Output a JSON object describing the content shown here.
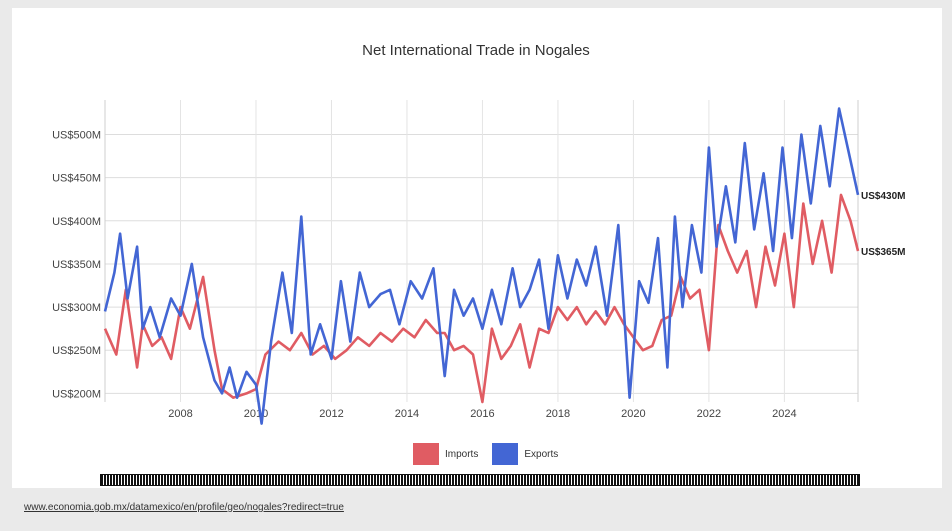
{
  "chart_data": {
    "type": "line",
    "title": "Net International Trade in Nogales",
    "xlabel": "",
    "ylabel": "",
    "x_ticks": [
      "2008",
      "2010",
      "2012",
      "2014",
      "2016",
      "2018",
      "2020",
      "2022",
      "2024"
    ],
    "y_ticks": [
      "US$200M",
      "US$250M",
      "US$300M",
      "US$350M",
      "US$400M",
      "US$450M",
      "US$500M"
    ],
    "x_range": [
      2006.0,
      2025.95
    ],
    "ylim": [
      190,
      540
    ],
    "grid": true,
    "legend_position": "bottom",
    "series": [
      {
        "name": "Imports",
        "color": "#e05c63",
        "end_label": "US$365M",
        "x": [
          2006.0,
          2006.3,
          2006.55,
          2006.85,
          2007.0,
          2007.25,
          2007.5,
          2007.75,
          2008.0,
          2008.25,
          2008.6,
          2008.9,
          2009.1,
          2009.4,
          2009.75,
          2010.0,
          2010.25,
          2010.6,
          2010.9,
          2011.2,
          2011.5,
          2011.8,
          2012.1,
          2012.4,
          2012.7,
          2013.0,
          2013.3,
          2013.6,
          2013.9,
          2014.2,
          2014.5,
          2014.8,
          2015.0,
          2015.25,
          2015.5,
          2015.75,
          2016.0,
          2016.25,
          2016.5,
          2016.75,
          2017.0,
          2017.25,
          2017.5,
          2017.75,
          2018.0,
          2018.25,
          2018.5,
          2018.75,
          2019.0,
          2019.25,
          2019.5,
          2019.75,
          2020.0,
          2020.25,
          2020.5,
          2020.75,
          2021.0,
          2021.25,
          2021.5,
          2021.75,
          2022.0,
          2022.25,
          2022.5,
          2022.75,
          2023.0,
          2023.25,
          2023.5,
          2023.75,
          2024.0,
          2024.25,
          2024.5,
          2024.75,
          2025.0,
          2025.25,
          2025.5,
          2025.75,
          2025.95
        ],
        "y": [
          275,
          245,
          320,
          230,
          280,
          255,
          265,
          240,
          300,
          275,
          335,
          250,
          205,
          195,
          200,
          205,
          245,
          260,
          250,
          270,
          245,
          255,
          240,
          250,
          265,
          255,
          270,
          260,
          275,
          265,
          285,
          270,
          270,
          250,
          255,
          245,
          190,
          275,
          240,
          255,
          280,
          230,
          275,
          270,
          300,
          285,
          300,
          280,
          295,
          280,
          300,
          280,
          265,
          250,
          255,
          285,
          290,
          335,
          310,
          320,
          250,
          395,
          365,
          340,
          365,
          300,
          370,
          325,
          385,
          300,
          420,
          350,
          400,
          340,
          430,
          400,
          365
        ]
      },
      {
        "name": "Exports",
        "color": "#4366d4",
        "end_label": "US$430M",
        "x": [
          2006.0,
          2006.25,
          2006.4,
          2006.6,
          2006.85,
          2007.0,
          2007.2,
          2007.45,
          2007.75,
          2008.0,
          2008.3,
          2008.6,
          2008.9,
          2009.1,
          2009.3,
          2009.5,
          2009.75,
          2010.0,
          2010.15,
          2010.4,
          2010.7,
          2010.95,
          2011.2,
          2011.45,
          2011.7,
          2012.0,
          2012.25,
          2012.5,
          2012.75,
          2013.0,
          2013.3,
          2013.55,
          2013.8,
          2014.1,
          2014.4,
          2014.7,
          2015.0,
          2015.25,
          2015.5,
          2015.75,
          2016.0,
          2016.25,
          2016.5,
          2016.8,
          2017.0,
          2017.25,
          2017.5,
          2017.75,
          2018.0,
          2018.25,
          2018.5,
          2018.75,
          2019.0,
          2019.3,
          2019.6,
          2019.9,
          2020.15,
          2020.4,
          2020.65,
          2020.9,
          2021.1,
          2021.3,
          2021.55,
          2021.8,
          2022.0,
          2022.2,
          2022.45,
          2022.7,
          2022.95,
          2023.2,
          2023.45,
          2023.7,
          2023.95,
          2024.2,
          2024.45,
          2024.7,
          2024.95,
          2025.2,
          2025.45,
          2025.7,
          2025.95
        ],
        "y": [
          295,
          340,
          385,
          310,
          370,
          275,
          300,
          265,
          310,
          290,
          350,
          265,
          215,
          200,
          230,
          195,
          225,
          210,
          165,
          260,
          340,
          270,
          405,
          245,
          280,
          240,
          330,
          260,
          340,
          300,
          315,
          320,
          280,
          330,
          310,
          345,
          220,
          320,
          290,
          310,
          275,
          320,
          280,
          345,
          300,
          320,
          355,
          275,
          360,
          310,
          355,
          325,
          370,
          290,
          395,
          195,
          330,
          305,
          380,
          230,
          405,
          300,
          395,
          340,
          485,
          370,
          440,
          375,
          490,
          390,
          455,
          365,
          485,
          380,
          500,
          420,
          510,
          440,
          530,
          480,
          430
        ]
      }
    ]
  },
  "legend": {
    "imports_label": "Imports",
    "exports_label": "Exports",
    "imports_color": "#e05c63",
    "exports_color": "#4366d4"
  },
  "source_link": "www.economia.gob.mx/datamexico/en/profile/geo/nogales?redirect=true"
}
